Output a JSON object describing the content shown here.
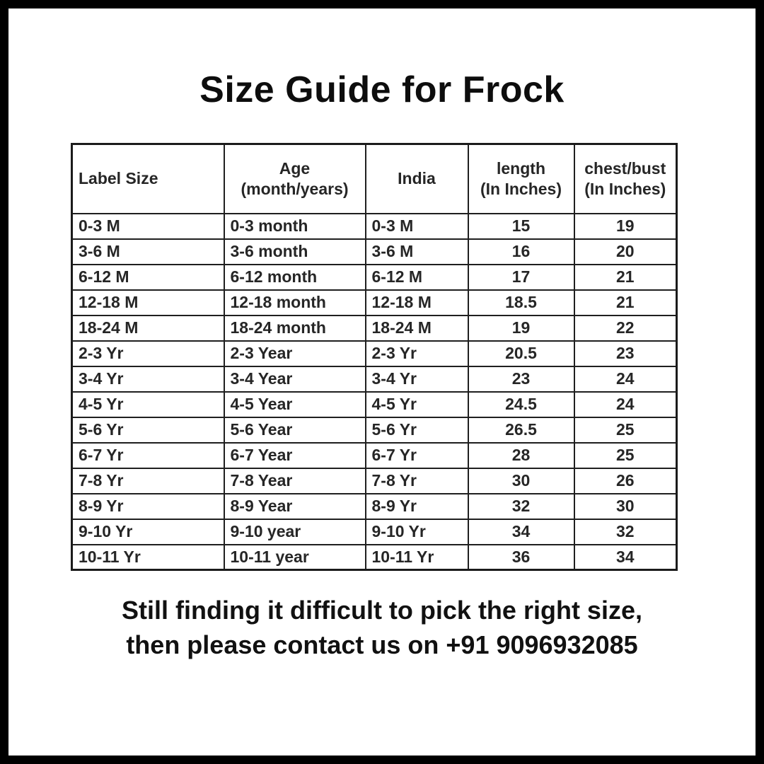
{
  "title": "Size Guide for Frock",
  "table": {
    "headers": [
      "Label Size",
      "Age\n(month/years)",
      "India",
      "length\n(In Inches)",
      "chest/bust\n(In Inches)"
    ],
    "rows": [
      [
        "0-3 M",
        "0-3 month",
        "0-3 M",
        "15",
        "19"
      ],
      [
        "3-6 M",
        "3-6 month",
        "3-6 M",
        "16",
        "20"
      ],
      [
        "6-12 M",
        "6-12 month",
        "6-12 M",
        "17",
        "21"
      ],
      [
        "12-18 M",
        "12-18 month",
        "12-18 M",
        "18.5",
        "21"
      ],
      [
        "18-24 M",
        "18-24 month",
        "18-24 M",
        "19",
        "22"
      ],
      [
        "2-3 Yr",
        "2-3 Year",
        "2-3 Yr",
        "20.5",
        "23"
      ],
      [
        "3-4 Yr",
        "3-4 Year",
        "3-4 Yr",
        "23",
        "24"
      ],
      [
        "4-5 Yr",
        "4-5 Year",
        "4-5 Yr",
        "24.5",
        "24"
      ],
      [
        "5-6 Yr",
        "5-6 Year",
        "5-6 Yr",
        "26.5",
        "25"
      ],
      [
        "6-7 Yr",
        "6-7 Year",
        "6-7 Yr",
        "28",
        "25"
      ],
      [
        "7-8 Yr",
        "7-8 Year",
        "7-8 Yr",
        "30",
        "26"
      ],
      [
        "8-9 Yr",
        "8-9 Year",
        "8-9 Yr",
        "32",
        "30"
      ],
      [
        "9-10 Yr",
        "9-10 year",
        "9-10 Yr",
        "34",
        "32"
      ],
      [
        "10-11 Yr",
        "10-11 year",
        "10-11 Yr",
        "36",
        "34"
      ]
    ]
  },
  "footer": {
    "line1": "Still finding it difficult to pick the right size,",
    "line2": "then please contact us on +91 9096932085"
  },
  "colors": {
    "frame_border": "#000000",
    "background": "#ffffff",
    "text": "#111111",
    "table_border": "#1f1f1f"
  }
}
